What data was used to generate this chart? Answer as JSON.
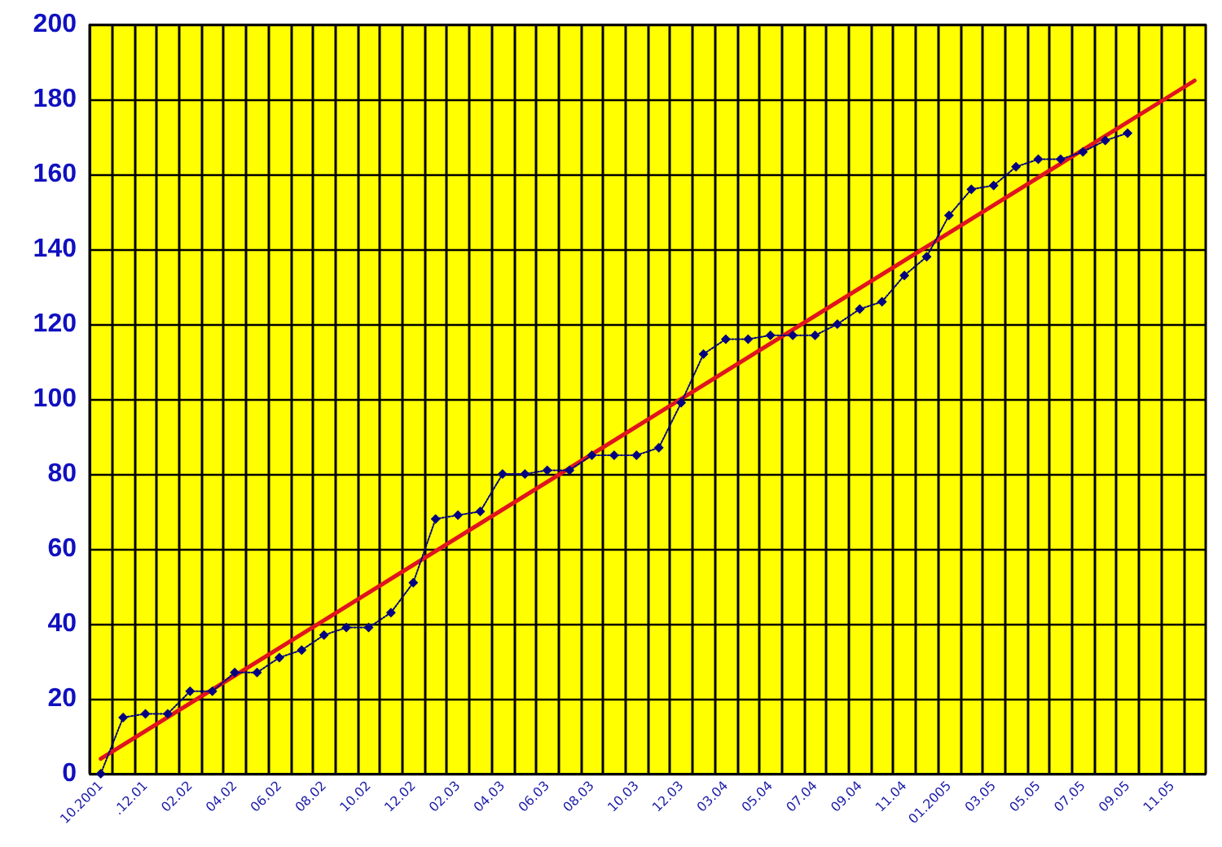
{
  "chart_data": {
    "type": "line",
    "categories": [
      "10.2001",
      null,
      ".12.01",
      null,
      "02.02",
      null,
      "04.02",
      null,
      "06.02",
      null,
      "08.02",
      null,
      "10.02",
      null,
      "12.02",
      null,
      "02.03",
      null,
      "04.03",
      null,
      "06.03",
      null,
      "08.03",
      null,
      "10.03",
      null,
      "12.03",
      null,
      "03.04",
      null,
      "05.04",
      null,
      "07.04",
      null,
      "09.04",
      null,
      "11.04",
      null,
      "01.2005",
      null,
      "03.05",
      null,
      "05.05",
      null,
      "07.05",
      null,
      "09.05",
      null,
      "11.05",
      null
    ],
    "series": [
      {
        "color": "#000080",
        "marker": "diamond",
        "line_style": "dotted",
        "values": [
          0,
          15,
          16,
          16,
          22,
          22,
          27,
          27,
          31,
          33,
          37,
          39,
          39,
          43,
          51,
          68,
          69,
          70,
          80,
          80,
          81,
          81,
          85,
          85,
          85,
          87,
          99,
          112,
          116,
          116,
          117,
          117,
          117,
          120,
          124,
          126,
          133,
          138,
          149,
          156,
          157,
          162,
          164,
          164,
          166,
          169,
          171,
          null,
          null,
          null
        ]
      },
      {
        "type": "line",
        "color": "#e0141e",
        "marker": "none",
        "line_style": "solid",
        "values": [
          4,
          null,
          null,
          null,
          null,
          null,
          null,
          null,
          null,
          null,
          null,
          null,
          null,
          null,
          null,
          null,
          null,
          null,
          null,
          null,
          null,
          null,
          null,
          null,
          null,
          null,
          null,
          null,
          null,
          null,
          null,
          null,
          null,
          null,
          null,
          null,
          null,
          null,
          null,
          null,
          null,
          null,
          null,
          null,
          null,
          null,
          null,
          null,
          null,
          185
        ]
      }
    ],
    "ylim": [
      0,
      200
    ],
    "yticks": [
      0,
      20,
      40,
      60,
      80,
      100,
      120,
      140,
      160,
      180,
      200
    ],
    "grid": true
  }
}
